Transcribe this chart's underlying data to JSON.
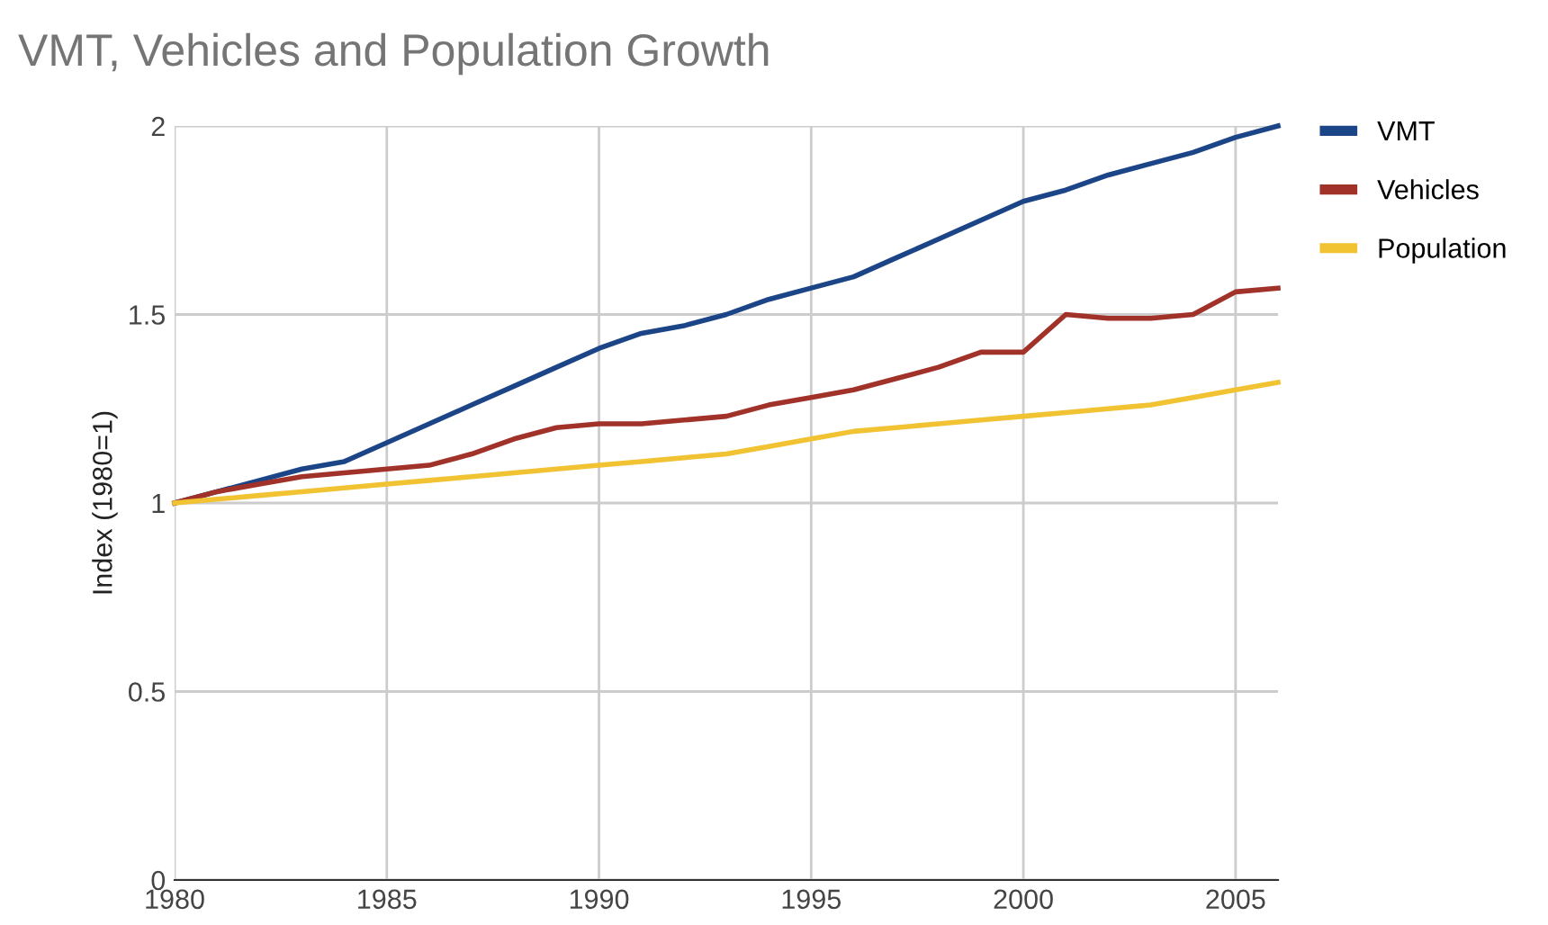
{
  "chart_data": {
    "type": "line",
    "title": "VMT, Vehicles and Population Growth",
    "ylabel": "Index (1980=1)",
    "x": [
      1980,
      1981,
      1982,
      1983,
      1984,
      1985,
      1986,
      1987,
      1988,
      1989,
      1990,
      1991,
      1992,
      1993,
      1994,
      1995,
      1996,
      1997,
      1998,
      1999,
      2000,
      2001,
      2002,
      2003,
      2004,
      2005,
      2006
    ],
    "series": [
      {
        "name": "VMT",
        "color": "#1c4587",
        "values": [
          1.0,
          1.03,
          1.06,
          1.09,
          1.11,
          1.16,
          1.21,
          1.26,
          1.31,
          1.36,
          1.41,
          1.45,
          1.47,
          1.5,
          1.54,
          1.57,
          1.6,
          1.65,
          1.7,
          1.75,
          1.8,
          1.83,
          1.87,
          1.9,
          1.93,
          1.97,
          2.0
        ]
      },
      {
        "name": "Vehicles",
        "color": "#a1322a",
        "values": [
          1.0,
          1.03,
          1.05,
          1.07,
          1.08,
          1.09,
          1.1,
          1.13,
          1.17,
          1.2,
          1.21,
          1.21,
          1.22,
          1.23,
          1.26,
          1.28,
          1.3,
          1.33,
          1.36,
          1.4,
          1.4,
          1.5,
          1.49,
          1.49,
          1.5,
          1.56,
          1.57
        ]
      },
      {
        "name": "Population",
        "color": "#f1c232",
        "values": [
          1.0,
          1.01,
          1.02,
          1.03,
          1.04,
          1.05,
          1.06,
          1.07,
          1.08,
          1.09,
          1.1,
          1.11,
          1.12,
          1.13,
          1.15,
          1.17,
          1.19,
          1.2,
          1.21,
          1.22,
          1.23,
          1.24,
          1.25,
          1.26,
          1.28,
          1.3,
          1.32
        ]
      }
    ],
    "xlim": [
      1980,
      2006
    ],
    "xticks": [
      1980,
      1985,
      1990,
      1995,
      2000,
      2005
    ],
    "ylim": [
      0,
      2
    ],
    "yticks": [
      0,
      0.5,
      1,
      1.5,
      2
    ],
    "grid": true,
    "legend": "top right",
    "marker": "none",
    "line_style": "solid"
  }
}
